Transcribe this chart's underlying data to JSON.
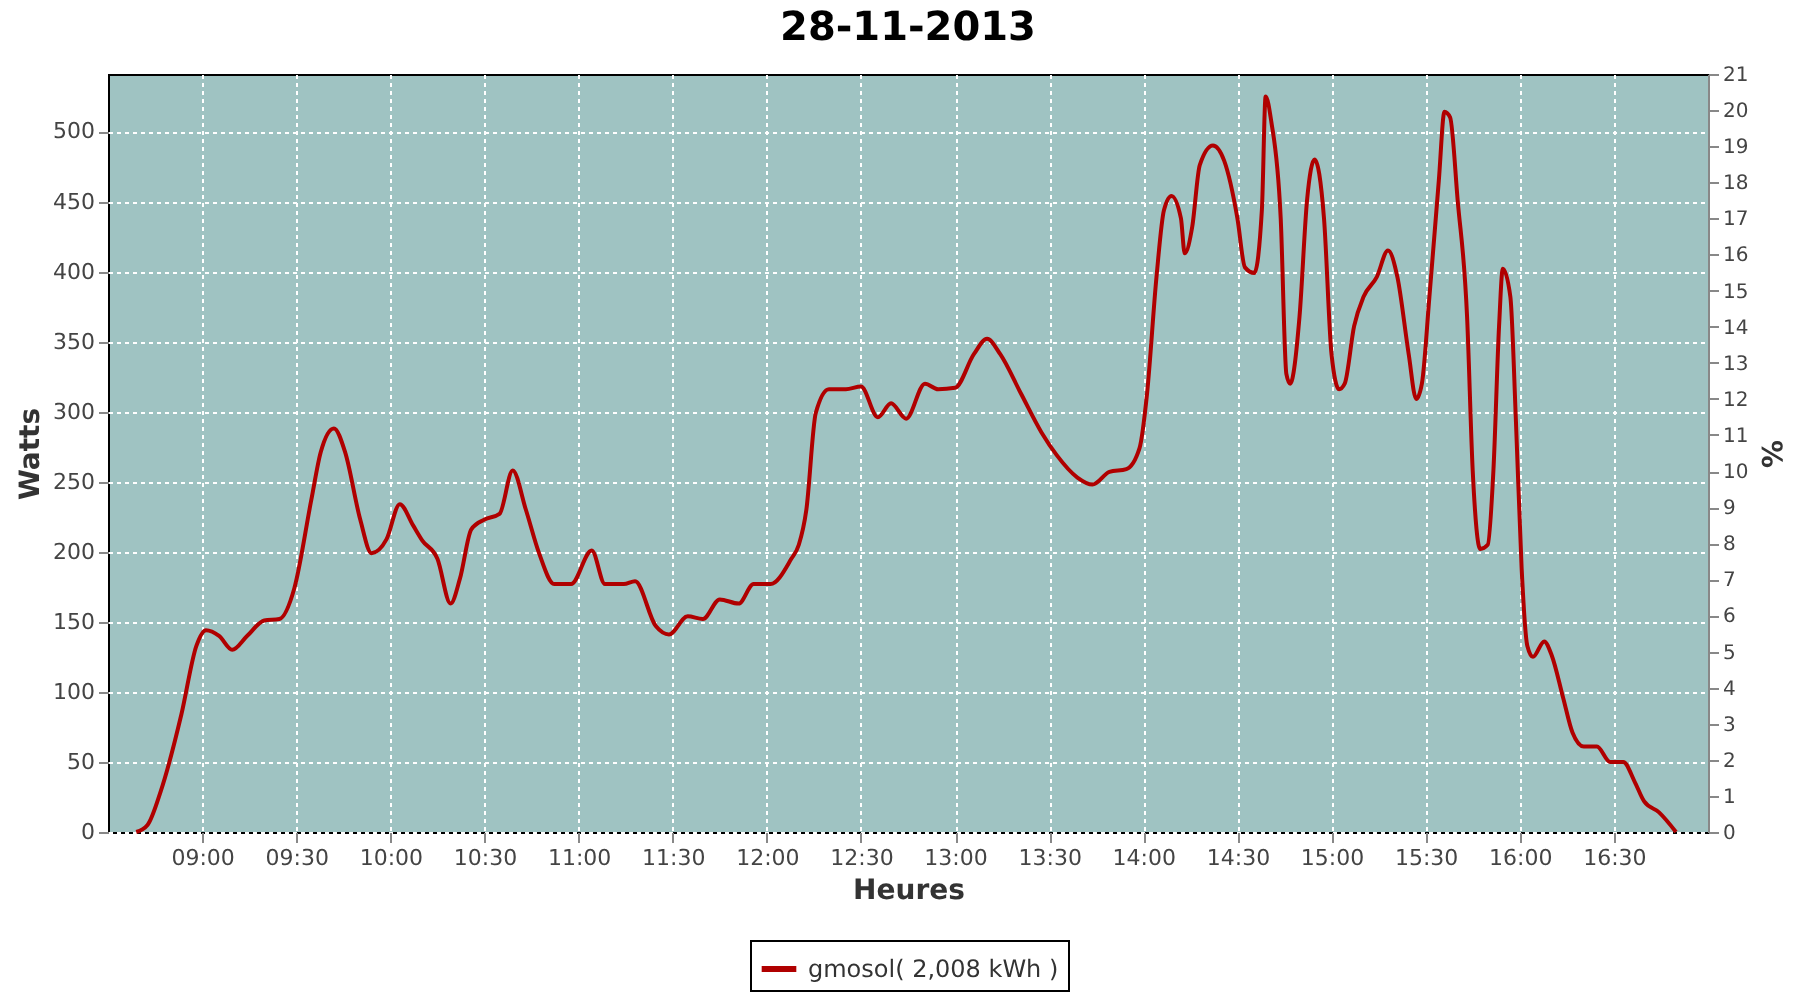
{
  "chart_data": {
    "type": "line",
    "title": "28-11-2013",
    "xlabel": "Heures",
    "ylabel": "Watts",
    "y2label": "%",
    "x": [
      8.65,
      8.71,
      8.78,
      8.89,
      8.97,
      9.02,
      9.09,
      9.16,
      9.24,
      9.33,
      9.41,
      9.49,
      9.58,
      9.63,
      9.7,
      9.76,
      9.84,
      9.9,
      9.98,
      10.05,
      10.12,
      10.17,
      10.25,
      10.32,
      10.37,
      10.43,
      10.5,
      10.58,
      10.65,
      10.72,
      10.79,
      10.87,
      10.96,
      11.07,
      11.14,
      11.24,
      11.3,
      11.41,
      11.48,
      11.58,
      11.66,
      11.75,
      11.85,
      11.93,
      12.02,
      12.13,
      12.17,
      12.21,
      12.26,
      12.33,
      12.42,
      12.5,
      12.59,
      12.66,
      12.74,
      12.84,
      12.91,
      13.0,
      13.1,
      13.17,
      13.24,
      13.35,
      13.46,
      13.54,
      13.65,
      13.73,
      13.82,
      13.91,
      13.98,
      14.02,
      14.07,
      14.11,
      14.15,
      14.2,
      14.22,
      14.26,
      14.3,
      14.37,
      14.43,
      14.5,
      14.54,
      14.59,
      14.63,
      14.65,
      14.68,
      14.73,
      14.76,
      14.78,
      14.83,
      14.87,
      14.91,
      14.96,
      15.0,
      15.04,
      15.07,
      15.12,
      15.17,
      15.24,
      15.3,
      15.35,
      15.41,
      15.45,
      15.48,
      15.52,
      15.57,
      15.6,
      15.63,
      15.67,
      15.72,
      15.75,
      15.79,
      15.83,
      15.86,
      15.89,
      15.91,
      15.95,
      15.98,
      16.01,
      16.04,
      16.07,
      16.13,
      16.17,
      16.23,
      16.28,
      16.34,
      16.41,
      16.48,
      16.55,
      16.61,
      16.66,
      16.74,
      16.83
    ],
    "series": [
      {
        "name": "gmosol( 2,008 kWh )",
        "color": "#b00000",
        "values": [
          0,
          5,
          29,
          84,
          133,
          144,
          140,
          130,
          140,
          151,
          152,
          174,
          237,
          271,
          288,
          271,
          223,
          199,
          209,
          234,
          219,
          208,
          195,
          163,
          181,
          216,
          223,
          227,
          258,
          230,
          199,
          177,
          177,
          201,
          177,
          177,
          179,
          147,
          141,
          154,
          152,
          166,
          163,
          177,
          177,
          195,
          205,
          230,
          299,
          316,
          316,
          318,
          296,
          306,
          295,
          320,
          316,
          317,
          341,
          352,
          341,
          313,
          285,
          269,
          253,
          248,
          257,
          259,
          274,
          313,
          396,
          444,
          454,
          438,
          413,
          432,
          476,
          490,
          479,
          438,
          403,
          399,
          444,
          525,
          507,
          438,
          327,
          320,
          368,
          451,
          480,
          438,
          341,
          316,
          320,
          361,
          382,
          396,
          415,
          396,
          341,
          309,
          320,
          382,
          465,
          514,
          510,
          451,
          368,
          258,
          202,
          205,
          258,
          361,
          402,
          382,
          292,
          188,
          133,
          125,
          136,
          126,
          96,
          71,
          61,
          61,
          50,
          50,
          36,
          22,
          14,
          0
        ]
      }
    ],
    "xlim": [
      8.5,
      17.0
    ],
    "xticks": [
      {
        "value": 9,
        "label": "09:00"
      },
      {
        "value": 9.5,
        "label": "09:30"
      },
      {
        "value": 10,
        "label": "10:00"
      },
      {
        "value": 10.5,
        "label": "10:30"
      },
      {
        "value": 11,
        "label": "11:00"
      },
      {
        "value": 11.5,
        "label": "11:30"
      },
      {
        "value": 12,
        "label": "12:00"
      },
      {
        "value": 12.5,
        "label": "12:30"
      },
      {
        "value": 13,
        "label": "13:00"
      },
      {
        "value": 13.5,
        "label": "13:30"
      },
      {
        "value": 14,
        "label": "14:00"
      },
      {
        "value": 14.5,
        "label": "14:30"
      },
      {
        "value": 15,
        "label": "15:00"
      },
      {
        "value": 15.5,
        "label": "15:30"
      },
      {
        "value": 16,
        "label": "16:00"
      },
      {
        "value": 16.5,
        "label": "16:30"
      }
    ],
    "ylim": [
      0,
      541
    ],
    "yticks": [
      0,
      50,
      100,
      150,
      200,
      250,
      300,
      350,
      400,
      450,
      500
    ],
    "y2lim": [
      0,
      21
    ],
    "y2ticks": [
      0,
      1,
      2,
      3,
      4,
      5,
      6,
      7,
      8,
      9,
      10,
      11,
      12,
      13,
      14,
      15,
      16,
      17,
      18,
      19,
      20,
      21
    ],
    "grid": true,
    "legend": "bottom"
  }
}
